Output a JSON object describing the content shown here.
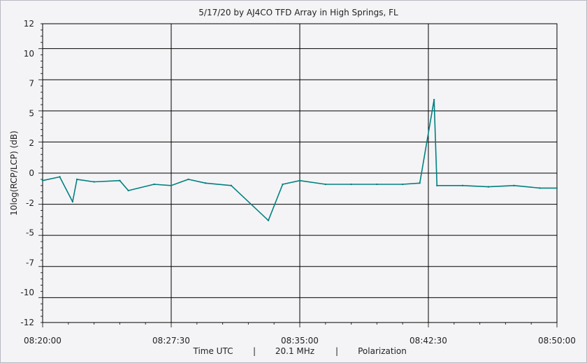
{
  "chart_data": {
    "type": "line",
    "title": "5/17/20  by  AJ4CO TFD Array  in  High Springs, FL",
    "ylabel": "10log(RCP/LCP) (dB)",
    "xlabel_parts": [
      "Time UTC",
      "|",
      "20.1 MHz",
      "|",
      "Polarization"
    ],
    "ylim": [
      -12,
      12
    ],
    "y_ticks": [
      12,
      10,
      7,
      5,
      2,
      0,
      -2,
      -5,
      -7,
      -10,
      -12
    ],
    "x_range": [
      "08:20:00",
      "08:50:00"
    ],
    "x_ticks": [
      "08:20:00",
      "08:27:30",
      "08:35:00",
      "08:42:30",
      "08:50:00"
    ],
    "grid": true,
    "series": [
      {
        "color": "#008080",
        "points": [
          [
            "08:20:00",
            -0.6
          ],
          [
            "08:21:00",
            -0.3
          ],
          [
            "08:21:45",
            -2.3
          ],
          [
            "08:22:00",
            -0.5
          ],
          [
            "08:23:00",
            -0.7
          ],
          [
            "08:24:30",
            -0.6
          ],
          [
            "08:25:00",
            -1.4
          ],
          [
            "08:26:30",
            -0.9
          ],
          [
            "08:27:30",
            -1.0
          ],
          [
            "08:28:30",
            -0.5
          ],
          [
            "08:29:30",
            -0.8
          ],
          [
            "08:31:00",
            -1.0
          ],
          [
            "08:33:10",
            -3.8
          ],
          [
            "08:34:00",
            -0.9
          ],
          [
            "08:35:00",
            -0.6
          ],
          [
            "08:36:30",
            -0.9
          ],
          [
            "08:38:00",
            -0.9
          ],
          [
            "08:39:30",
            -0.9
          ],
          [
            "08:41:00",
            -0.9
          ],
          [
            "08:42:00",
            -0.8
          ],
          [
            "08:42:50",
            5.9
          ],
          [
            "08:43:00",
            -1.0
          ],
          [
            "08:44:30",
            -1.0
          ],
          [
            "08:46:00",
            -1.1
          ],
          [
            "08:47:30",
            -1.0
          ],
          [
            "08:49:00",
            -1.2
          ],
          [
            "08:50:00",
            -1.2
          ]
        ]
      }
    ]
  }
}
